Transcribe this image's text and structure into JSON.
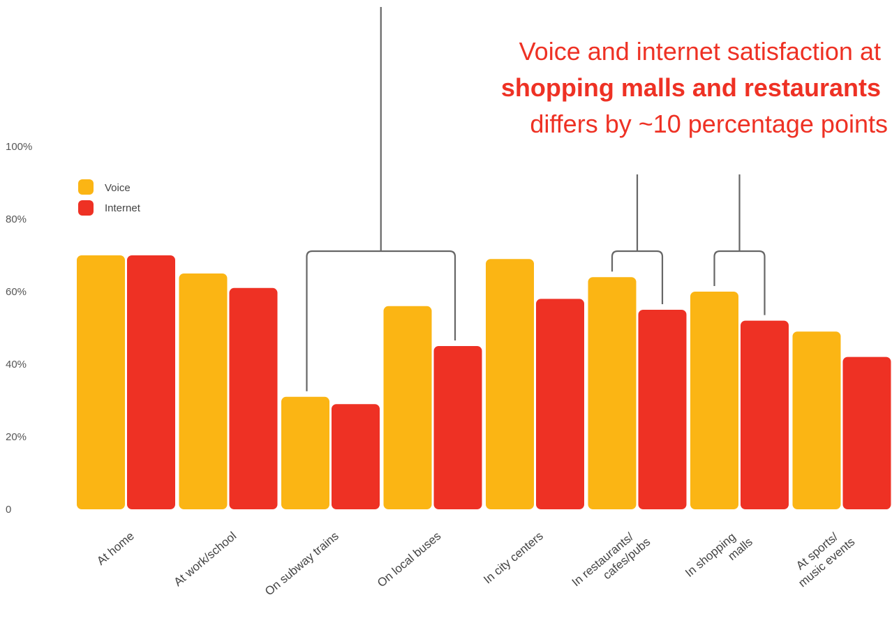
{
  "chart_data": {
    "type": "bar",
    "categories": [
      [
        "At home"
      ],
      [
        "At work/school"
      ],
      [
        "On subway trains"
      ],
      [
        "On local buses"
      ],
      [
        "In city centers"
      ],
      [
        "In restaurants/",
        "cafes/pubs"
      ],
      [
        "In shopping",
        "malls"
      ],
      [
        "At sports/",
        "music events"
      ]
    ],
    "series": [
      {
        "name": "Voice",
        "color": "#fbb514",
        "values": [
          70,
          65,
          31,
          56,
          69,
          64,
          60,
          49
        ]
      },
      {
        "name": "Internet",
        "color": "#ee3124",
        "values": [
          70,
          61,
          29,
          45,
          58,
          55,
          52,
          42
        ]
      }
    ],
    "ylim": [
      0,
      100
    ],
    "yticks": [
      0,
      20,
      40,
      60,
      80,
      100
    ],
    "ytick_labels": [
      "0",
      "20%",
      "40%",
      "60%",
      "80%",
      "100%"
    ],
    "legend": {
      "placement": "top-left",
      "entries": [
        "Voice",
        "Internet"
      ]
    },
    "grid": false,
    "annotation": {
      "line1": "Voice and internet satisfaction at",
      "line2": "shopping malls and restaurants",
      "line3": "differs by ~10 percentage points",
      "color": "#ee3124"
    },
    "callouts": [
      {
        "category_index": 2,
        "to_category_index": 3
      },
      {
        "category_index": 5
      },
      {
        "category_index": 6
      }
    ]
  }
}
